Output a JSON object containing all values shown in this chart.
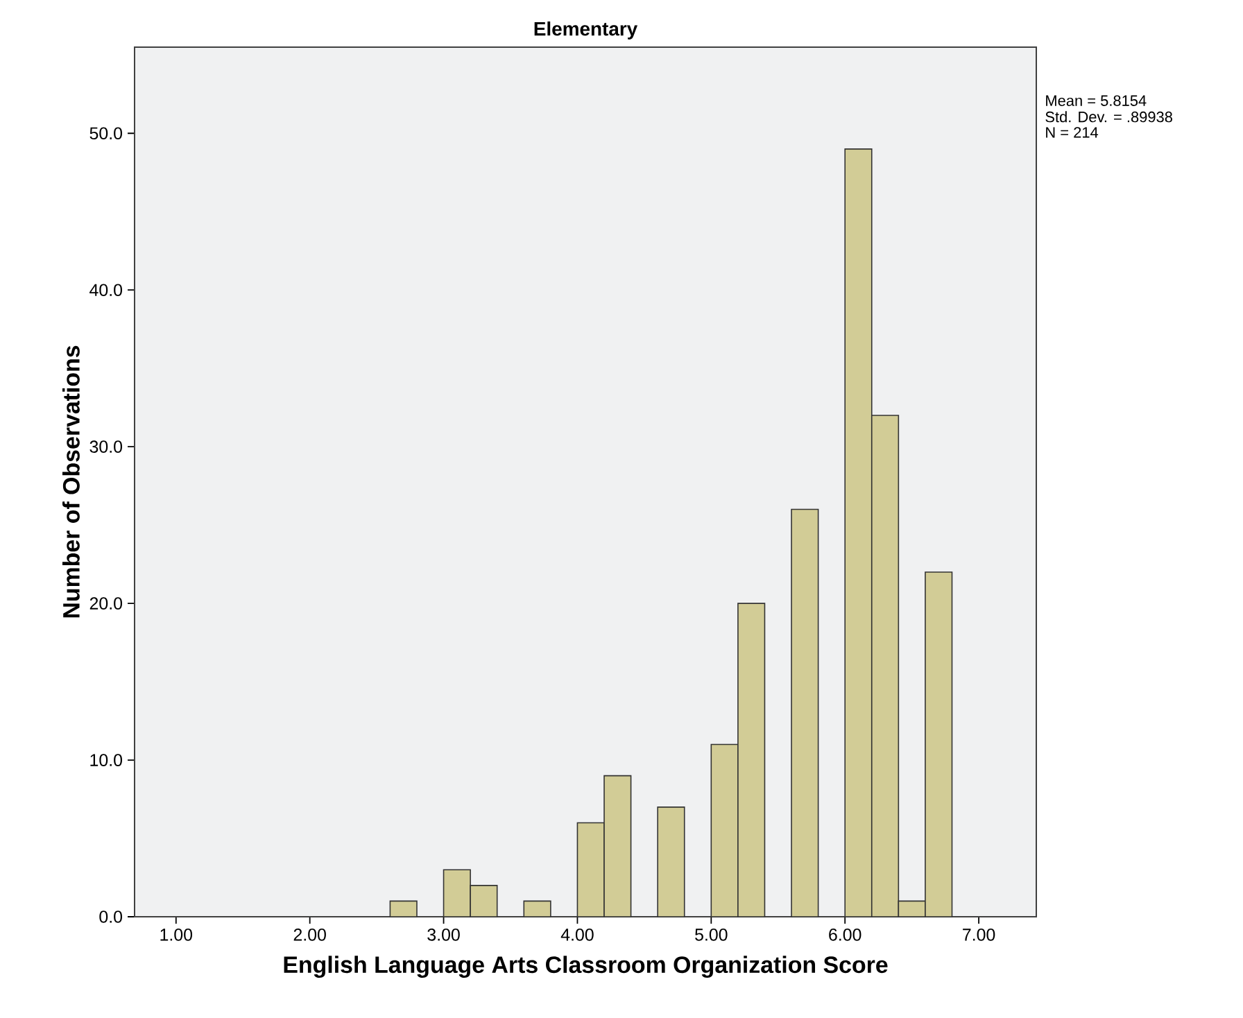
{
  "chart_data": {
    "type": "histogram",
    "title": "Elementary",
    "xlabel": "English Language Arts Classroom Organization Score",
    "ylabel": "Number of Observations",
    "bins": [
      2.6,
      2.8,
      3.0,
      3.2,
      3.4,
      3.6,
      3.8,
      4.0,
      4.2,
      4.4,
      4.6,
      4.8,
      5.0,
      5.2,
      5.4,
      5.6,
      5.8,
      6.0,
      6.2,
      6.4,
      6.6,
      6.8
    ],
    "values": [
      1,
      0,
      3,
      2,
      0,
      1,
      0,
      6,
      9,
      0,
      7,
      0,
      11,
      20,
      0,
      26,
      0,
      49,
      32,
      1,
      22
    ],
    "color": "#d2cc96",
    "xlim": [
      0.69,
      7.43
    ],
    "ylim": [
      0,
      55.5
    ],
    "xticks": [
      {
        "value": 1,
        "label": "1.00"
      },
      {
        "value": 2,
        "label": "2.00"
      },
      {
        "value": 3,
        "label": "3.00"
      },
      {
        "value": 4,
        "label": "4.00"
      },
      {
        "value": 5,
        "label": "5.00"
      },
      {
        "value": 6,
        "label": "6.00"
      },
      {
        "value": 7,
        "label": "7.00"
      }
    ],
    "yticks": [
      {
        "value": 0,
        "label": "0.0"
      },
      {
        "value": 10,
        "label": "10.0"
      },
      {
        "value": 20,
        "label": "20.0"
      },
      {
        "value": 30,
        "label": "30.0"
      },
      {
        "value": 40,
        "label": "40.0"
      },
      {
        "value": 50,
        "label": "50.0"
      }
    ],
    "annotations": [
      "Mean = 5.8154",
      "Std. Dev. = .89938",
      "N = 214"
    ],
    "grid": false
  }
}
